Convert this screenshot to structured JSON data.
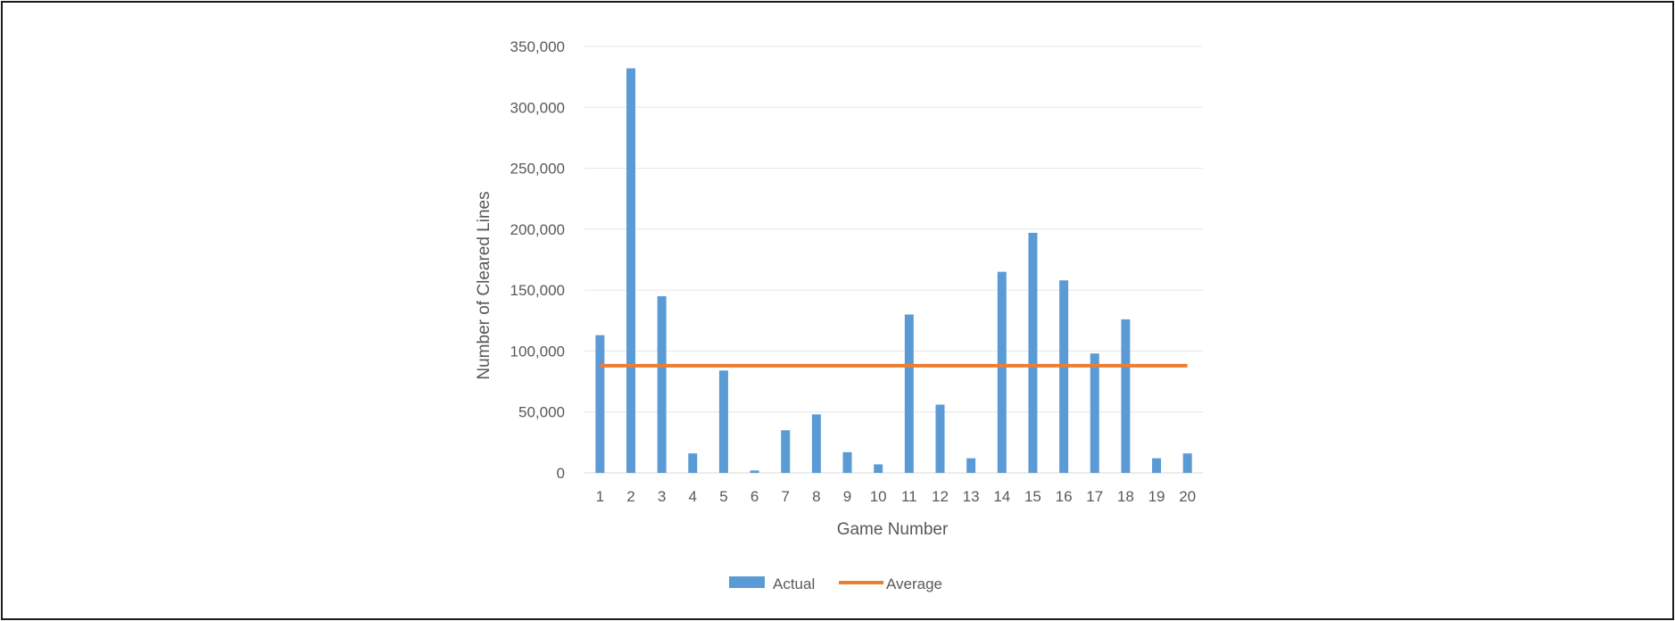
{
  "chart_data": {
    "type": "bar",
    "xlabel": "Game Number",
    "ylabel": "Number of Cleared Lines",
    "ylim": [
      0,
      350000
    ],
    "y_ticks": [
      0,
      50000,
      100000,
      150000,
      200000,
      250000,
      300000,
      350000
    ],
    "y_tick_labels": [
      "0",
      "50,000",
      "100,000",
      "150,000",
      "200,000",
      "250,000",
      "300,000",
      "350,000"
    ],
    "categories": [
      "1",
      "2",
      "3",
      "4",
      "5",
      "6",
      "7",
      "8",
      "9",
      "10",
      "11",
      "12",
      "13",
      "14",
      "15",
      "16",
      "17",
      "18",
      "19",
      "20"
    ],
    "series": [
      {
        "name": "Actual",
        "type": "bar",
        "color": "#5b9bd5",
        "values": [
          113000,
          332000,
          145000,
          16000,
          84000,
          2000,
          35000,
          48000,
          17000,
          7000,
          130000,
          56000,
          12000,
          165000,
          197000,
          158000,
          98000,
          126000,
          12000,
          16000
        ]
      },
      {
        "name": "Average",
        "type": "line",
        "color": "#ed7d31",
        "values": [
          88000,
          88000,
          88000,
          88000,
          88000,
          88000,
          88000,
          88000,
          88000,
          88000,
          88000,
          88000,
          88000,
          88000,
          88000,
          88000,
          88000,
          88000,
          88000,
          88000
        ]
      }
    ],
    "grid": true,
    "legend_position": "bottom"
  }
}
